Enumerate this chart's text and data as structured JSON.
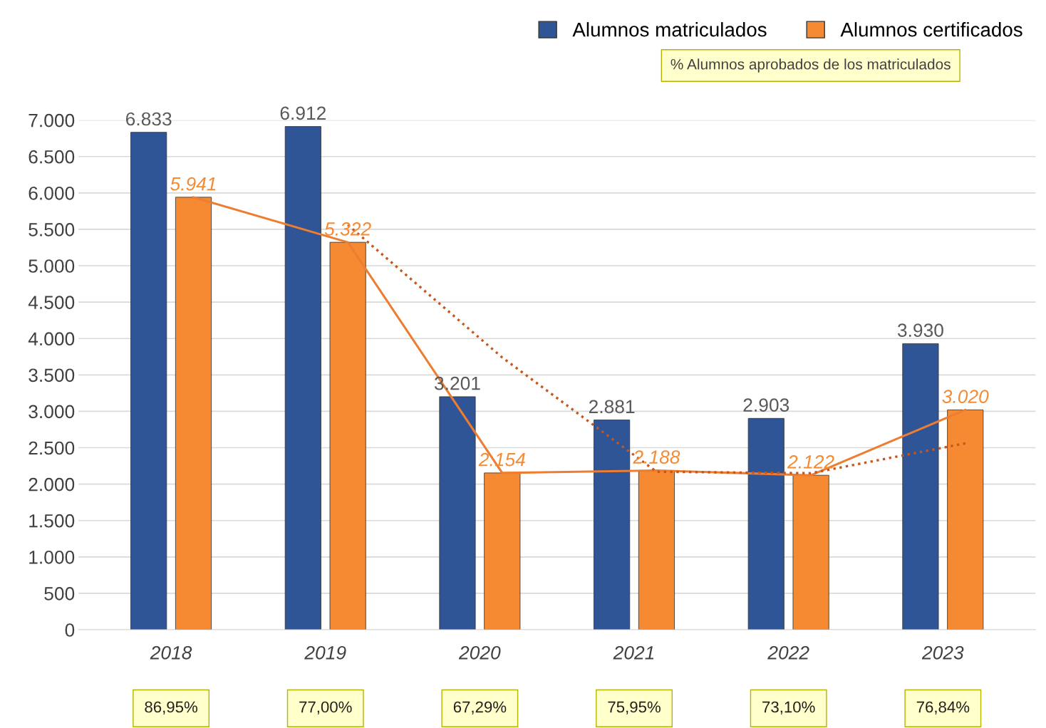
{
  "chart_data": {
    "type": "bar",
    "categories": [
      "2018",
      "2019",
      "2020",
      "2021",
      "2022",
      "2023"
    ],
    "series": [
      {
        "name": "Alumnos matriculados",
        "color": "#2f5597",
        "values": [
          6833,
          6912,
          3201,
          2881,
          2903,
          3930
        ],
        "value_labels": [
          "6.833",
          "6.912",
          "3.201",
          "2.881",
          "2.903",
          "3.930"
        ]
      },
      {
        "name": "Alumnos certificados",
        "color": "#f58a33",
        "values": [
          5941,
          5322,
          2154,
          2188,
          2122,
          3020
        ],
        "value_labels": [
          "5.941",
          "5.322",
          "2.154",
          "2.188",
          "2.122",
          "3.020"
        ]
      },
      {
        "type": "line",
        "color": "#ed7d31",
        "line_style": "solid",
        "values": [
          5941,
          5322,
          2154,
          2188,
          2122,
          3020
        ]
      },
      {
        "type": "line",
        "color": "#c8561a",
        "line_style": "dotted",
        "values": [
          null,
          5560,
          3740,
          2170,
          2150,
          2560
        ]
      }
    ],
    "ylim": [
      0,
      7000
    ],
    "yticks": [
      {
        "value": 0,
        "label": "0"
      },
      {
        "value": 500,
        "label": "500"
      },
      {
        "value": 1000,
        "label": "1.000"
      },
      {
        "value": 1500,
        "label": "1.500"
      },
      {
        "value": 2000,
        "label": "2.000"
      },
      {
        "value": 2500,
        "label": "2.500"
      },
      {
        "value": 3000,
        "label": "3.000"
      },
      {
        "value": 3500,
        "label": "3.500"
      },
      {
        "value": 4000,
        "label": "4.000"
      },
      {
        "value": 4500,
        "label": "4.500"
      },
      {
        "value": 5000,
        "label": "5.000"
      },
      {
        "value": 5500,
        "label": "5.500"
      },
      {
        "value": 6000,
        "label": "6.000"
      },
      {
        "value": 6500,
        "label": "6.500"
      },
      {
        "value": 7000,
        "label": "7.000"
      }
    ],
    "grid": "y",
    "legend": "top right",
    "annotations": [
      "% Alumnos aprobados de los matriculados",
      "86,95%",
      "77,00%",
      "67,29%",
      "75,95%",
      "73,10%",
      "76,84%"
    ]
  }
}
